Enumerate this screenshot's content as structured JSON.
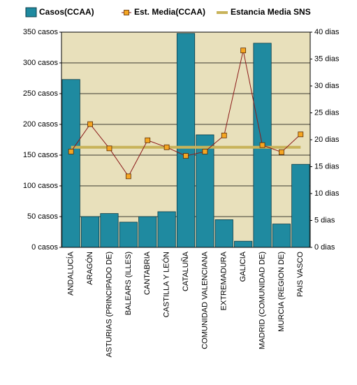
{
  "chart_data": {
    "type": "bar_line",
    "categories": [
      "ANDALUCÍA",
      "ARAGÓN",
      "ASTURIAS (PRINCIPADO DE)",
      "BALEARS (ILLES)",
      "CANTABRIA",
      "CASTILLA Y LEÓN",
      "CATALUÑA",
      "COMUNIDAD VALENCIANA",
      "EXTREMADURA",
      "GALICIA",
      "MADRID (COMUNIDAD DE)",
      "MURCIA (REGION DE)",
      "PAIS VASCO"
    ],
    "series": [
      {
        "name": "Casos(CCAA)",
        "type": "bar",
        "color": "#1f8aa0",
        "values": [
          273,
          50,
          55,
          41,
          50,
          58,
          348,
          183,
          45,
          10,
          332,
          38,
          135
        ]
      },
      {
        "name": "Est. Media(CCAA)",
        "type": "line",
        "axis": "y2",
        "color": "#8b1a1a",
        "marker_color": "#f5a623",
        "values": [
          17.8,
          22.9,
          18.4,
          13.2,
          19.9,
          18.6,
          17.0,
          17.8,
          20.8,
          36.6,
          19.0,
          17.7,
          21.0
        ]
      }
    ],
    "reference_line": {
      "name": "Estancia Media SNS",
      "axis": "y2",
      "color": "#c8b35a",
      "value": 18.6
    },
    "ylim": [
      0,
      350
    ],
    "yticks": [
      {
        "value": 0,
        "label": "0 casos"
      },
      {
        "value": 50,
        "label": "50 casos"
      },
      {
        "value": 100,
        "label": "100 casos"
      },
      {
        "value": 150,
        "label": "150 casos"
      },
      {
        "value": 200,
        "label": "200 casos"
      },
      {
        "value": 250,
        "label": "250 casos"
      },
      {
        "value": 300,
        "label": "300 casos"
      },
      {
        "value": 350,
        "label": "350 casos"
      }
    ],
    "y2lim": [
      0,
      40
    ],
    "y2ticks": [
      {
        "value": 0,
        "label": "0 dias"
      },
      {
        "value": 5,
        "label": "5 dias"
      },
      {
        "value": 10,
        "label": "10 dias"
      },
      {
        "value": 15,
        "label": "15 dias"
      },
      {
        "value": 20,
        "label": "20 dias"
      },
      {
        "value": 25,
        "label": "25 dias"
      },
      {
        "value": 30,
        "label": "30 dias"
      },
      {
        "value": 35,
        "label": "35 dias"
      },
      {
        "value": 40,
        "label": "40 dias"
      }
    ],
    "grid": true,
    "plot_background": "#e8e0bb"
  }
}
